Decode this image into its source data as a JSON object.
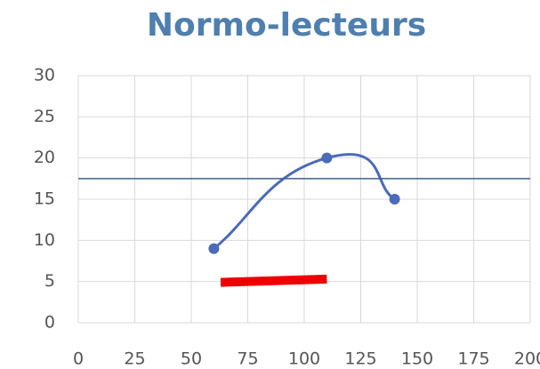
{
  "chart_data": {
    "type": "scatter",
    "title": "Normo-lecteurs",
    "xlim": [
      0,
      200
    ],
    "xticks": [
      0,
      25,
      50,
      75,
      100,
      125,
      150,
      175,
      200
    ],
    "ylim": [
      0,
      30
    ],
    "yticks": [
      0,
      5,
      10,
      15,
      20,
      25,
      30
    ],
    "grid": true,
    "series": [
      {
        "color": "#4a6bb8",
        "x": [
          60,
          110,
          140
        ],
        "values": [
          9,
          20,
          15
        ],
        "smooth": true,
        "markers": true,
        "width": 3
      },
      {
        "color": "#3f5f8f",
        "x": [
          0,
          200
        ],
        "values": [
          17.5,
          17.5
        ],
        "smooth": false,
        "markers": false,
        "width": 1.5
      },
      {
        "color": "#ee0000",
        "x": [
          63,
          110
        ],
        "values": [
          4.9,
          5.3
        ],
        "smooth": false,
        "markers": false,
        "width": 10
      }
    ]
  }
}
